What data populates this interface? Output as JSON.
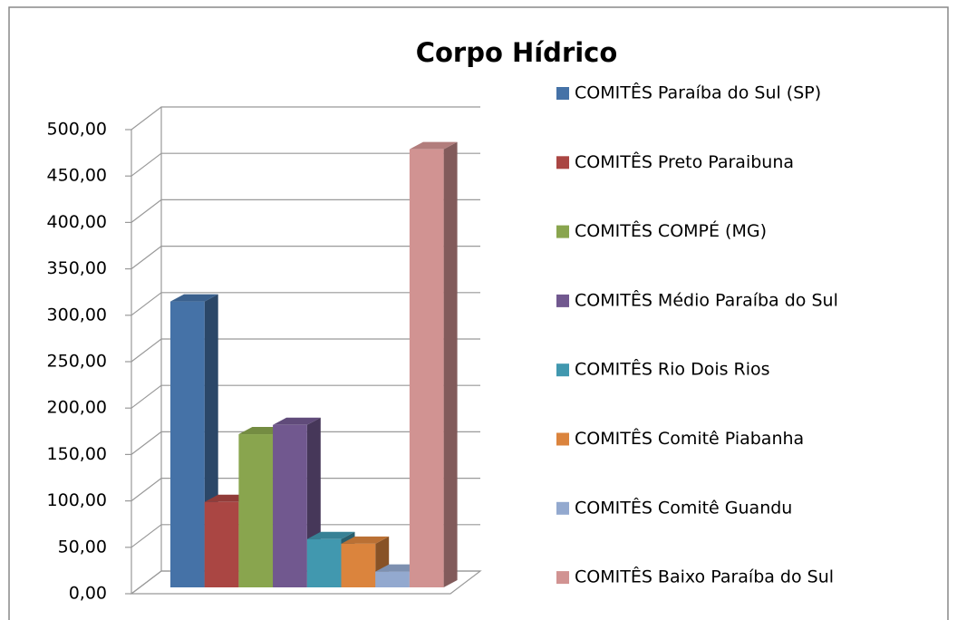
{
  "chart_data": {
    "type": "bar3d",
    "title": "Corpo Hídrico",
    "series": [
      {
        "name": "COMITÊS Paraíba do Sul (SP)",
        "color": "#4572a7",
        "values": [
          308
        ]
      },
      {
        "name": "COMITÊS Preto Paraibuna",
        "color": "#aa4643",
        "values": [
          92
        ]
      },
      {
        "name": "COMITÊS COMPÉ (MG)",
        "color": "#89a54e",
        "values": [
          165
        ]
      },
      {
        "name": "COMITÊS Médio Paraíba do Sul",
        "color": "#71588f",
        "values": [
          175
        ]
      },
      {
        "name": "COMITÊS Rio Dois Rios",
        "color": "#4198af",
        "values": [
          52
        ]
      },
      {
        "name": "COMITÊS Comitê Piabanha",
        "color": "#db843d",
        "values": [
          47
        ]
      },
      {
        "name": "COMITÊS Comitê Guandu",
        "color": "#93a9cf",
        "values": [
          17
        ]
      },
      {
        "name": "COMITÊS Baixo Paraíba do Sul",
        "color": "#d19392",
        "values": [
          472
        ]
      }
    ],
    "ylim": [
      0,
      500
    ],
    "yticks": [
      {
        "value": 0,
        "label": "0,00"
      },
      {
        "value": 50,
        "label": "50,00"
      },
      {
        "value": 100,
        "label": "100,00"
      },
      {
        "value": 150,
        "label": "150,00"
      },
      {
        "value": 200,
        "label": "200,00"
      },
      {
        "value": 250,
        "label": "250,00"
      },
      {
        "value": 300,
        "label": "300,00"
      },
      {
        "value": 350,
        "label": "350,00"
      },
      {
        "value": 400,
        "label": "400,00"
      },
      {
        "value": 450,
        "label": "450,00"
      },
      {
        "value": 500,
        "label": "500,00"
      }
    ],
    "grid": true,
    "legend": "right"
  }
}
